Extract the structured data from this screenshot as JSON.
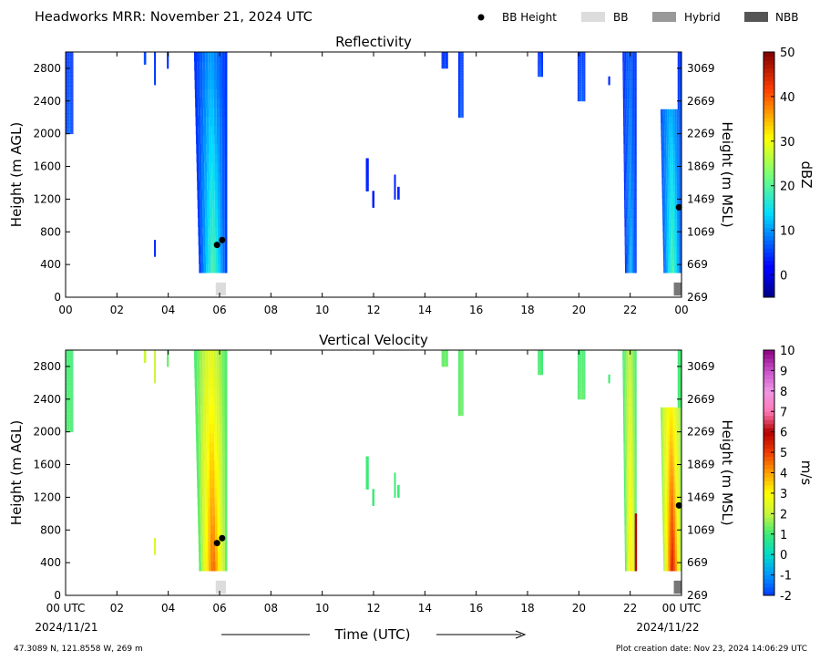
{
  "header": {
    "title": "Headworks MRR:  November 21, 2024 UTC",
    "legend": [
      {
        "label": "BB Height",
        "kind": "dot",
        "color": "#000000"
      },
      {
        "label": "BB",
        "kind": "box",
        "color": "#dcdcdc"
      },
      {
        "label": "Hybrid",
        "kind": "box",
        "color": "#999999"
      },
      {
        "label": "NBB",
        "kind": "box",
        "color": "#555555"
      }
    ]
  },
  "footer": {
    "location": "47.3089 N, 121.8558 W, 269 m",
    "creation": "Plot creation date: Nov 23, 2024 14:06:29 UTC",
    "xlabel": "Time (UTC)",
    "start_date": "2024/11/21",
    "end_date": "2024/11/22"
  },
  "chart_data": [
    {
      "type": "heatmap",
      "title": "Reflectivity",
      "ylabel": "Height (m AGL)",
      "y2label": "Height (m MSL)",
      "xlim": [
        0,
        24
      ],
      "ylim": [
        0,
        3000
      ],
      "xticks": [
        "00",
        "02",
        "04",
        "06",
        "08",
        "10",
        "12",
        "14",
        "16",
        "18",
        "20",
        "22",
        "00"
      ],
      "yticks": [
        0,
        400,
        800,
        1200,
        1600,
        2000,
        2400,
        2800
      ],
      "y2ticks": [
        269,
        669,
        1069,
        1469,
        1869,
        2269,
        2669,
        3069
      ],
      "colorbar": {
        "label": "dBZ",
        "min": -5,
        "max": 50,
        "ticks": [
          0,
          10,
          20,
          30,
          40,
          50
        ],
        "colormap": "jet"
      },
      "bb_height_points": [
        {
          "x": 5.9,
          "y": 640
        },
        {
          "x": 6.1,
          "y": 700
        },
        {
          "x": 23.9,
          "y": 1100
        }
      ],
      "bb_type_markers": [
        {
          "x0": 5.85,
          "x1": 6.25,
          "type": "BB"
        },
        {
          "x0": 23.7,
          "x1": 24.0,
          "type": "NBB"
        }
      ],
      "echoes": [
        {
          "x0": 0.0,
          "x1": 0.3,
          "y0": 2000,
          "y1": 3000,
          "core": 8,
          "edge": 4
        },
        {
          "x0": 3.05,
          "x1": 3.12,
          "y0": 2850,
          "y1": 3000,
          "core": 8,
          "edge": 5
        },
        {
          "x0": 3.45,
          "x1": 3.5,
          "y0": 2600,
          "y1": 3000,
          "core": 7,
          "edge": 4
        },
        {
          "x0": 3.95,
          "x1": 4.0,
          "y0": 2800,
          "y1": 3000,
          "core": 6,
          "edge": 4
        },
        {
          "x0": 3.45,
          "x1": 3.5,
          "y0": 500,
          "y1": 700,
          "core": 5,
          "edge": 4
        },
        {
          "x0": 5.2,
          "x1": 6.3,
          "y0": 300,
          "y1": 3000,
          "core": 20,
          "edge": 4,
          "slant": 0.5
        },
        {
          "x0": 11.7,
          "x1": 11.8,
          "y0": 1300,
          "y1": 1700,
          "core": 5,
          "edge": 3
        },
        {
          "x0": 11.95,
          "x1": 12.02,
          "y0": 1100,
          "y1": 1300,
          "core": 5,
          "edge": 3
        },
        {
          "x0": 12.8,
          "x1": 12.85,
          "y0": 1200,
          "y1": 1500,
          "core": 5,
          "edge": 3
        },
        {
          "x0": 12.93,
          "x1": 13.0,
          "y0": 1200,
          "y1": 1350,
          "core": 5,
          "edge": 3
        },
        {
          "x0": 14.65,
          "x1": 14.9,
          "y0": 2800,
          "y1": 3000,
          "core": 6,
          "edge": 4
        },
        {
          "x0": 15.3,
          "x1": 15.5,
          "y0": 2200,
          "y1": 3000,
          "core": 8,
          "edge": 4
        },
        {
          "x0": 18.4,
          "x1": 18.6,
          "y0": 2700,
          "y1": 3000,
          "core": 8,
          "edge": 4
        },
        {
          "x0": 19.95,
          "x1": 20.25,
          "y0": 2400,
          "y1": 3000,
          "core": 8,
          "edge": 4
        },
        {
          "x0": 21.15,
          "x1": 21.2,
          "y0": 2600,
          "y1": 2700,
          "core": 5,
          "edge": 4
        },
        {
          "x0": 21.8,
          "x1": 22.25,
          "y0": 300,
          "y1": 3000,
          "core": 12,
          "edge": 4,
          "slant": 0.25
        },
        {
          "x0": 23.3,
          "x1": 24.0,
          "y0": 300,
          "y1": 2300,
          "core": 20,
          "edge": 6,
          "slant": 0.3
        },
        {
          "x0": 23.85,
          "x1": 24.0,
          "y0": 2300,
          "y1": 3000,
          "core": 8,
          "edge": 4
        }
      ]
    },
    {
      "type": "heatmap",
      "title": "Vertical Velocity",
      "ylabel": "Height (m AGL)",
      "y2label": "Height (m MSL)",
      "xlim": [
        0,
        24
      ],
      "ylim": [
        0,
        3000
      ],
      "xticks": [
        "00 UTC",
        "02",
        "04",
        "06",
        "08",
        "10",
        "12",
        "14",
        "16",
        "18",
        "20",
        "22",
        "00 UTC"
      ],
      "yticks": [
        0,
        400,
        800,
        1200,
        1600,
        2000,
        2400,
        2800
      ],
      "y2ticks": [
        269,
        669,
        1069,
        1469,
        1869,
        2269,
        2669,
        3069
      ],
      "colorbar": {
        "label": "m/s",
        "min": -2,
        "max": 10,
        "ticks": [
          -2,
          -1,
          0,
          1,
          2,
          3,
          4,
          5,
          6,
          7,
          8,
          9,
          10
        ],
        "colormap": "velocity"
      },
      "bb_height_points": [
        {
          "x": 5.9,
          "y": 640
        },
        {
          "x": 6.1,
          "y": 700
        },
        {
          "x": 23.9,
          "y": 1100
        }
      ],
      "bb_type_markers": [
        {
          "x0": 5.85,
          "x1": 6.25,
          "type": "BB"
        },
        {
          "x0": 23.7,
          "x1": 24.0,
          "type": "NBB"
        }
      ],
      "echoes": [
        {
          "x0": 0.0,
          "x1": 0.3,
          "y0": 2000,
          "y1": 3000,
          "core": 1.2,
          "edge": 1.0
        },
        {
          "x0": 3.05,
          "x1": 3.12,
          "y0": 2850,
          "y1": 3000,
          "core": 2.2,
          "edge": 2.0
        },
        {
          "x0": 3.45,
          "x1": 3.5,
          "y0": 2600,
          "y1": 3000,
          "core": 2.2,
          "edge": 2.0
        },
        {
          "x0": 3.95,
          "x1": 4.0,
          "y0": 2800,
          "y1": 3000,
          "core": 1.5,
          "edge": 1.2
        },
        {
          "x0": 3.45,
          "x1": 3.5,
          "y0": 500,
          "y1": 700,
          "core": 2.5,
          "edge": 2.3
        },
        {
          "x0": 5.2,
          "x1": 6.3,
          "y0": 300,
          "y1": 3000,
          "core": 4.8,
          "edge": 1.0,
          "slant": 0.5
        },
        {
          "x0": 11.7,
          "x1": 11.8,
          "y0": 1300,
          "y1": 1700,
          "core": 1.0,
          "edge": 1.0
        },
        {
          "x0": 11.95,
          "x1": 12.02,
          "y0": 1100,
          "y1": 1300,
          "core": 1.0,
          "edge": 1.0
        },
        {
          "x0": 12.8,
          "x1": 12.85,
          "y0": 1200,
          "y1": 1500,
          "core": 1.0,
          "edge": 1.0
        },
        {
          "x0": 12.93,
          "x1": 13.0,
          "y0": 1200,
          "y1": 1350,
          "core": 1.0,
          "edge": 1.0
        },
        {
          "x0": 14.65,
          "x1": 14.9,
          "y0": 2800,
          "y1": 3000,
          "core": 1.4,
          "edge": 1.2
        },
        {
          "x0": 15.3,
          "x1": 15.5,
          "y0": 2200,
          "y1": 3000,
          "core": 1.4,
          "edge": 1.2
        },
        {
          "x0": 18.4,
          "x1": 18.6,
          "y0": 2700,
          "y1": 3000,
          "core": 1.2,
          "edge": 1.0
        },
        {
          "x0": 19.95,
          "x1": 20.25,
          "y0": 2400,
          "y1": 3000,
          "core": 1.4,
          "edge": 1.0
        },
        {
          "x0": 21.15,
          "x1": 21.2,
          "y0": 2600,
          "y1": 2700,
          "core": 1.2,
          "edge": 1.0
        },
        {
          "x0": 21.8,
          "x1": 22.25,
          "y0": 300,
          "y1": 3000,
          "core": 3.5,
          "edge": 1.0,
          "slant": 0.25
        },
        {
          "x0": 22.18,
          "x1": 22.25,
          "y0": 300,
          "y1": 1000,
          "core": 6.2,
          "edge": 6.0
        },
        {
          "x0": 23.3,
          "x1": 24.0,
          "y0": 300,
          "y1": 2300,
          "core": 5.8,
          "edge": 1.5,
          "slant": 0.3
        },
        {
          "x0": 23.85,
          "x1": 24.0,
          "y0": 2300,
          "y1": 3000,
          "core": 1.2,
          "edge": 1.0
        }
      ]
    }
  ]
}
